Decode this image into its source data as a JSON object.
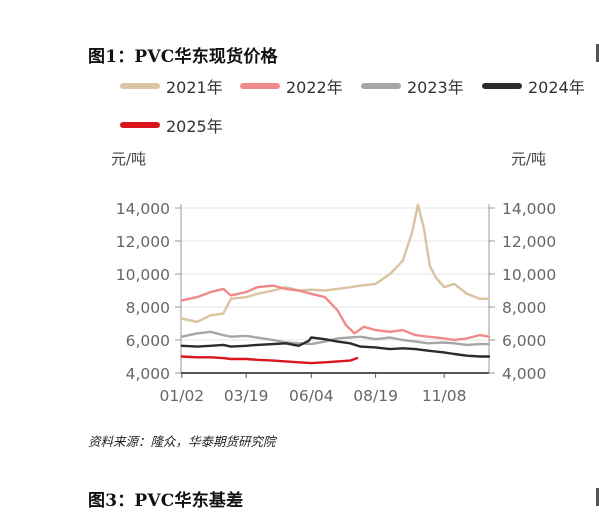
{
  "figure1": {
    "title": "图1：PVC华东现货价格",
    "unit_left": "元/吨",
    "unit_right": "元/吨",
    "source": "资料来源：隆众，华泰期货研究院"
  },
  "figure3": {
    "title": "图3：PVC华东基差"
  },
  "chart_data": {
    "type": "line",
    "title": "图1：PVC华东现货价格",
    "ylabel": "元/吨",
    "ylabel_right": "元/吨",
    "x_ticks": [
      "01/02",
      "03/19",
      "06/04",
      "08/19",
      "11/08"
    ],
    "ylim": [
      4000,
      14000
    ],
    "y_ticks": [
      "4,000",
      "6,000",
      "8,000",
      "10,000",
      "12,000",
      "14,000"
    ],
    "y_ticks_right": [
      "4,000",
      "6,000",
      "8,000",
      "10,000",
      "12,000",
      "14,000"
    ],
    "grid": true,
    "legend_position": "top",
    "series": [
      {
        "name": "2021年",
        "color": "#d9c3a0",
        "points": [
          [
            "01/02",
            7300
          ],
          [
            "01/20",
            7100
          ],
          [
            "02/05",
            7500
          ],
          [
            "02/20",
            7600
          ],
          [
            "03/01",
            8500
          ],
          [
            "03/19",
            8600
          ],
          [
            "04/01",
            8800
          ],
          [
            "04/20",
            9000
          ],
          [
            "05/05",
            9200
          ],
          [
            "05/20",
            9000
          ],
          [
            "06/04",
            9050
          ],
          [
            "06/20",
            9000
          ],
          [
            "07/05",
            9100
          ],
          [
            "07/20",
            9200
          ],
          [
            "08/01",
            9300
          ],
          [
            "08/19",
            9400
          ],
          [
            "09/05",
            10000
          ],
          [
            "09/20",
            10800
          ],
          [
            "10/01",
            12500
          ],
          [
            "10/08",
            14200
          ],
          [
            "10/15",
            12800
          ],
          [
            "10/22",
            10500
          ],
          [
            "10/29",
            9800
          ],
          [
            "11/08",
            9200
          ],
          [
            "11/20",
            9400
          ],
          [
            "12/05",
            8800
          ],
          [
            "12/20",
            8500
          ],
          [
            "12/31",
            8500
          ]
        ]
      },
      {
        "name": "2022年",
        "color": "#f08a8a",
        "points": [
          [
            "01/02",
            8400
          ],
          [
            "01/20",
            8600
          ],
          [
            "02/05",
            8900
          ],
          [
            "02/20",
            9100
          ],
          [
            "03/01",
            8700
          ],
          [
            "03/19",
            8900
          ],
          [
            "04/01",
            9200
          ],
          [
            "04/20",
            9300
          ],
          [
            "05/05",
            9100
          ],
          [
            "05/20",
            9000
          ],
          [
            "06/04",
            8800
          ],
          [
            "06/20",
            8600
          ],
          [
            "07/05",
            7800
          ],
          [
            "07/15",
            6900
          ],
          [
            "07/25",
            6400
          ],
          [
            "08/05",
            6800
          ],
          [
            "08/19",
            6600
          ],
          [
            "09/05",
            6500
          ],
          [
            "09/20",
            6600
          ],
          [
            "10/05",
            6300
          ],
          [
            "10/20",
            6200
          ],
          [
            "11/08",
            6100
          ],
          [
            "11/20",
            6000
          ],
          [
            "12/05",
            6100
          ],
          [
            "12/20",
            6300
          ],
          [
            "12/31",
            6200
          ]
        ]
      },
      {
        "name": "2023年",
        "color": "#a6a6a6",
        "points": [
          [
            "01/02",
            6200
          ],
          [
            "01/20",
            6400
          ],
          [
            "02/05",
            6500
          ],
          [
            "02/20",
            6300
          ],
          [
            "03/01",
            6200
          ],
          [
            "03/19",
            6250
          ],
          [
            "04/01",
            6150
          ],
          [
            "04/20",
            6000
          ],
          [
            "05/05",
            5850
          ],
          [
            "05/20",
            5800
          ],
          [
            "06/04",
            5750
          ],
          [
            "06/20",
            5900
          ],
          [
            "07/05",
            6100
          ],
          [
            "07/20",
            6150
          ],
          [
            "08/01",
            6200
          ],
          [
            "08/19",
            6050
          ],
          [
            "09/05",
            6150
          ],
          [
            "09/20",
            6000
          ],
          [
            "10/05",
            5900
          ],
          [
            "10/20",
            5800
          ],
          [
            "11/08",
            5850
          ],
          [
            "11/20",
            5800
          ],
          [
            "12/05",
            5700
          ],
          [
            "12/20",
            5750
          ],
          [
            "12/31",
            5750
          ]
        ]
      },
      {
        "name": "2024年",
        "color": "#2b2b2b",
        "points": [
          [
            "01/02",
            5650
          ],
          [
            "01/20",
            5600
          ],
          [
            "02/05",
            5650
          ],
          [
            "02/20",
            5700
          ],
          [
            "03/01",
            5600
          ],
          [
            "03/19",
            5650
          ],
          [
            "04/01",
            5700
          ],
          [
            "04/20",
            5750
          ],
          [
            "05/05",
            5800
          ],
          [
            "05/20",
            5650
          ],
          [
            "06/01",
            5950
          ],
          [
            "06/04",
            6150
          ],
          [
            "06/20",
            6050
          ],
          [
            "07/05",
            5900
          ],
          [
            "07/20",
            5800
          ],
          [
            "08/01",
            5600
          ],
          [
            "08/19",
            5550
          ],
          [
            "09/05",
            5450
          ],
          [
            "09/20",
            5500
          ],
          [
            "10/05",
            5450
          ],
          [
            "10/20",
            5350
          ],
          [
            "11/08",
            5250
          ],
          [
            "11/20",
            5150
          ],
          [
            "12/05",
            5050
          ],
          [
            "12/20",
            5000
          ],
          [
            "12/31",
            5000
          ]
        ]
      },
      {
        "name": "2025年",
        "color": "#d9161c",
        "points": [
          [
            "01/02",
            5000
          ],
          [
            "01/20",
            4950
          ],
          [
            "02/05",
            4950
          ],
          [
            "02/20",
            4900
          ],
          [
            "03/01",
            4850
          ],
          [
            "03/19",
            4850
          ],
          [
            "04/01",
            4800
          ],
          [
            "04/20",
            4750
          ],
          [
            "05/05",
            4700
          ],
          [
            "05/20",
            4650
          ],
          [
            "06/04",
            4600
          ],
          [
            "06/20",
            4650
          ],
          [
            "07/05",
            4700
          ],
          [
            "07/20",
            4750
          ],
          [
            "07/28",
            4900
          ]
        ]
      }
    ]
  }
}
